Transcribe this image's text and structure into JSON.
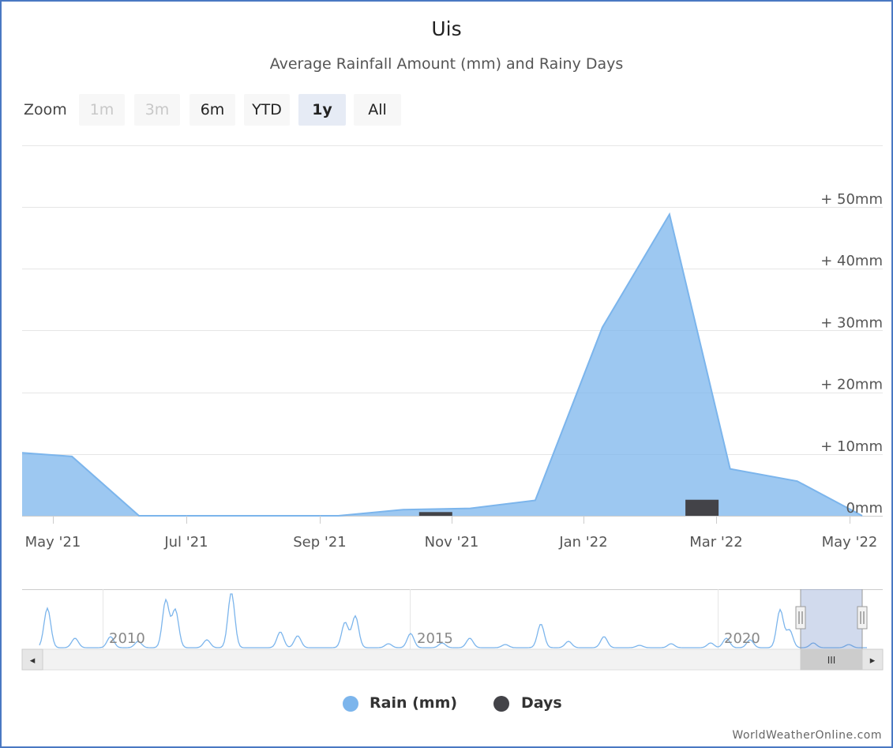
{
  "chart_data": {
    "type": "area",
    "title": "Uis",
    "subtitle": "Average Rainfall Amount (mm) and Rainy Days",
    "zoom": {
      "label": "Zoom",
      "buttons": [
        {
          "label": "1m",
          "state": "disabled"
        },
        {
          "label": "3m",
          "state": "disabled"
        },
        {
          "label": "6m",
          "state": "normal"
        },
        {
          "label": "YTD",
          "state": "normal"
        },
        {
          "label": "1y",
          "state": "active"
        },
        {
          "label": "All",
          "state": "normal"
        }
      ]
    },
    "x_ticks": [
      "May '21",
      "Jul '21",
      "Sep '21",
      "Nov '21",
      "Jan '22",
      "Mar '22",
      "May '22"
    ],
    "y_ticks": [
      "0mm",
      "+ 10mm",
      "+ 20mm",
      "+ 30mm",
      "+ 40mm",
      "+ 50mm"
    ],
    "ylim": [
      0,
      55
    ],
    "series": [
      {
        "name": "Rain (mm)",
        "color": "#7cb5ec",
        "points": [
          {
            "x": "2021-04-08",
            "y": 10.2
          },
          {
            "x": "2021-05-01",
            "y": 9.6
          },
          {
            "x": "2021-06-01",
            "y": 0
          },
          {
            "x": "2021-07-01",
            "y": 0
          },
          {
            "x": "2021-08-01",
            "y": 0
          },
          {
            "x": "2021-09-01",
            "y": 0
          },
          {
            "x": "2021-10-01",
            "y": 1.0
          },
          {
            "x": "2021-11-01",
            "y": 1.2
          },
          {
            "x": "2021-12-01",
            "y": 2.5
          },
          {
            "x": "2022-01-01",
            "y": 30.5
          },
          {
            "x": "2022-02-01",
            "y": 48.8
          },
          {
            "x": "2022-03-01",
            "y": 7.6
          },
          {
            "x": "2022-04-01",
            "y": 5.6
          },
          {
            "x": "2022-05-01",
            "y": 0
          }
        ]
      },
      {
        "name": "Days",
        "color": "#434348",
        "points": [
          {
            "x": "2021-10-16",
            "y": 0.6
          },
          {
            "x": "2022-02-16",
            "y": 2.6
          }
        ]
      }
    ],
    "navigator": {
      "year_labels": [
        "2010",
        "2015",
        "2020"
      ],
      "scrollbar_grip": "III",
      "left_arrow": "◂",
      "right_arrow": "▸",
      "handle_glyph": "||",
      "line_color": "#7cb5ec"
    },
    "legend": [
      {
        "label": "Rain (mm)",
        "color": "#7cb5ec"
      },
      {
        "label": "Days",
        "color": "#434348"
      }
    ],
    "credit": "WorldWeatherOnline.com"
  }
}
